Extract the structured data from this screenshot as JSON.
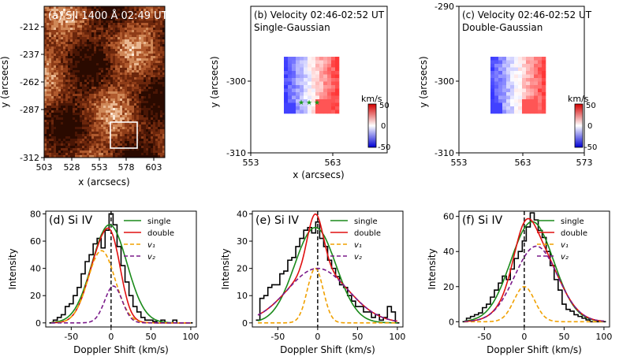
{
  "chart_data": [
    {
      "type": "heatmap",
      "title": "(a) SJI 1400 Å 02:49 UT",
      "xlabel": "x (arcsecs)",
      "ylabel": "y (arcsecs)",
      "xticks": [
        "503",
        "528",
        "553",
        "578",
        "603"
      ],
      "yticks": [
        "-212",
        "-237",
        "-262",
        "-287",
        "-312"
      ],
      "xlim": [
        503,
        613
      ],
      "ylim": [
        -312,
        -200
      ],
      "box": {
        "x0": 553,
        "x1": 575,
        "y0": -305,
        "y1": -287
      }
    },
    {
      "type": "heatmap",
      "title": "(b) Velocity 02:46-02:52 UT",
      "subtitle": "Single-Gaussian",
      "xlabel": "x (arcsecs)",
      "ylabel": "y (arcsecs)",
      "xticks": [
        "553",
        "563"
      ],
      "yticks": [
        "-300",
        "-310"
      ],
      "xlim": [
        553,
        570
      ],
      "ylim": [
        -310,
        -291
      ],
      "colorbar_label": "km/s",
      "colorbar_ticks": [
        "50",
        "0",
        "-50"
      ],
      "stars_x": [
        560.0,
        560.8,
        561.6
      ],
      "stars_y": -304.0
    },
    {
      "type": "heatmap",
      "title": "(c) Velocity 02:46-02:52 UT",
      "subtitle": "Double-Gaussian",
      "xlabel": "",
      "ylabel": "y (arcsecs)",
      "xticks": [
        "553",
        "563",
        "573"
      ],
      "yticks": [
        "-290",
        "-300",
        "-310"
      ],
      "xlim": [
        553,
        573
      ],
      "ylim": [
        -310,
        -290
      ],
      "colorbar_label": "km/s",
      "colorbar_ticks": [
        "50",
        "0",
        "-50"
      ]
    },
    {
      "type": "line",
      "title": "(d) Si IV",
      "xlabel": "Doppler Shift (km/s)",
      "ylabel": "Intensity",
      "xlim": [
        -82,
        107
      ],
      "ylim": [
        -3,
        82
      ],
      "xticks": [
        -50,
        0,
        50,
        100
      ],
      "yticks": [
        0,
        20,
        40,
        60,
        80
      ],
      "legend": [
        "single",
        "double",
        "v1",
        "v2"
      ],
      "series": [
        {
          "name": "single",
          "kind": "gauss",
          "params": [
            0,
            72,
            -2,
            22
          ]
        },
        {
          "name": "double",
          "kind": "gauss2",
          "params": [
            0,
            53,
            -12,
            17,
            27,
            3,
            11
          ]
        },
        {
          "name": "v1",
          "kind": "gauss",
          "params": [
            0,
            53,
            -12,
            17
          ]
        },
        {
          "name": "v2",
          "kind": "gauss",
          "params": [
            0,
            27,
            3,
            11
          ]
        },
        {
          "name": "observed",
          "kind": "step",
          "x": [
            -75,
            -70,
            -65,
            -60,
            -55,
            -50,
            -45,
            -40,
            -35,
            -30,
            -25,
            -20,
            -15,
            -10,
            -5,
            0,
            5,
            10,
            15,
            20,
            25,
            30,
            35,
            40,
            45,
            50,
            55,
            60,
            65,
            70,
            75,
            80,
            85,
            90,
            95,
            100
          ],
          "y": [
            0,
            2,
            4,
            6,
            12,
            14,
            20,
            26,
            36,
            45,
            50,
            58,
            62,
            55,
            68,
            80,
            72,
            56,
            42,
            30,
            20,
            12,
            8,
            4,
            2,
            2,
            1,
            0,
            2,
            0,
            0,
            2,
            0,
            0,
            0,
            0
          ]
        }
      ]
    },
    {
      "type": "line",
      "title": "(e) Si IV",
      "xlabel": "Doppler Shift (km/s)",
      "ylabel": "Intensity",
      "xlim": [
        -82,
        107
      ],
      "ylim": [
        -1.5,
        41
      ],
      "xticks": [
        -50,
        0,
        50,
        100
      ],
      "yticks": [
        0,
        10,
        20,
        30,
        40
      ],
      "legend": [
        "single",
        "double",
        "v1",
        "v2"
      ],
      "series": [
        {
          "name": "single",
          "kind": "gauss",
          "params": [
            0,
            35,
            -3,
            26
          ]
        },
        {
          "name": "double",
          "kind": "gauss2",
          "params": [
            0,
            20,
            -3,
            10,
            20,
            0,
            38
          ]
        },
        {
          "name": "v1",
          "kind": "gauss",
          "params": [
            0,
            20,
            -3,
            10
          ]
        },
        {
          "name": "v2",
          "kind": "gauss",
          "params": [
            0,
            20,
            0,
            38
          ]
        },
        {
          "name": "observed",
          "kind": "step",
          "x": [
            -75,
            -70,
            -65,
            -60,
            -55,
            -50,
            -45,
            -40,
            -35,
            -30,
            -25,
            -20,
            -15,
            -10,
            -5,
            0,
            5,
            10,
            15,
            20,
            25,
            30,
            35,
            40,
            45,
            50,
            55,
            60,
            65,
            70,
            75,
            80,
            85,
            90,
            95,
            100
          ],
          "y": [
            1,
            9,
            10,
            13,
            14,
            14,
            18,
            19,
            23,
            24,
            28,
            31,
            34,
            35,
            33,
            37,
            31,
            28,
            23,
            20,
            17,
            14,
            13,
            10,
            8,
            6,
            6,
            4,
            4,
            2,
            3,
            1,
            2,
            6,
            4,
            0
          ]
        }
      ]
    },
    {
      "type": "line",
      "title": "(f) Si IV",
      "xlabel": "Doppler Shift (km/s)",
      "ylabel": "Intensity",
      "xlim": [
        -82,
        107
      ],
      "ylim": [
        -3,
        63
      ],
      "xticks": [
        -50,
        0,
        50,
        100
      ],
      "yticks": [
        0,
        20,
        40,
        60
      ],
      "legend": [
        "single",
        "double",
        "v1",
        "v2"
      ],
      "series": [
        {
          "name": "single",
          "kind": "gauss",
          "params": [
            0,
            57,
            10,
            27
          ]
        },
        {
          "name": "double",
          "kind": "gauss2",
          "params": [
            0,
            20,
            0,
            13,
            43,
            15,
            27
          ]
        },
        {
          "name": "v1",
          "kind": "gauss",
          "params": [
            0,
            20,
            0,
            13
          ]
        },
        {
          "name": "v2",
          "kind": "gauss",
          "params": [
            0,
            43,
            15,
            27
          ]
        },
        {
          "name": "observed",
          "kind": "step",
          "x": [
            -75,
            -70,
            -65,
            -60,
            -55,
            -50,
            -45,
            -40,
            -35,
            -30,
            -25,
            -20,
            -15,
            -10,
            -5,
            0,
            5,
            10,
            15,
            20,
            25,
            30,
            35,
            40,
            45,
            50,
            55,
            60,
            65,
            70,
            75,
            80,
            85,
            90,
            95,
            100
          ],
          "y": [
            0,
            2,
            3,
            4,
            5,
            8,
            10,
            14,
            18,
            22,
            26,
            24,
            30,
            36,
            40,
            46,
            54,
            62,
            58,
            52,
            48,
            40,
            32,
            24,
            18,
            10,
            7,
            6,
            4,
            3,
            2,
            1,
            0,
            0,
            0,
            0
          ]
        }
      ]
    }
  ]
}
